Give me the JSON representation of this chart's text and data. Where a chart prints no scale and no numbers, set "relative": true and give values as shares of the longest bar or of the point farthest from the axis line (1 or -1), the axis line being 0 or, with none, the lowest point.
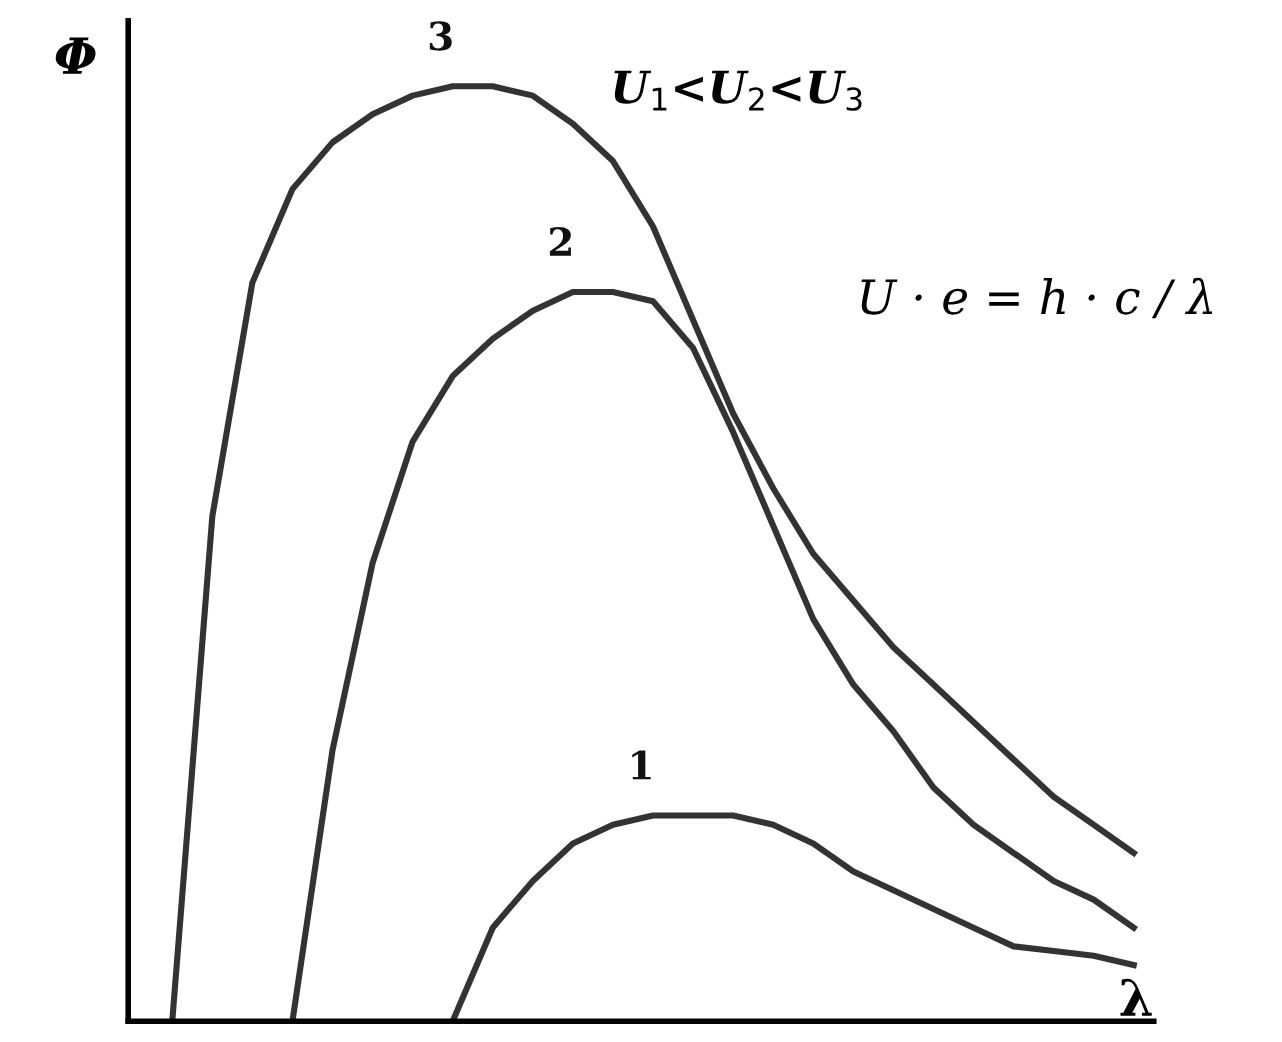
{
  "chart_data": {
    "type": "line",
    "relative": true,
    "xlabel": "λ",
    "ylabel": "Φ",
    "marker": "none",
    "line_style": "solid",
    "categories": [
      null,
      null,
      null,
      null,
      null,
      null,
      null,
      null,
      null,
      null,
      null,
      null,
      null,
      null,
      null,
      null,
      null,
      null,
      null,
      null,
      null,
      null,
      null,
      null,
      null
    ],
    "series": [
      {
        "name": "1",
        "color": "#333333",
        "values": [
          null,
          null,
          null,
          null,
          null,
          null,
          null,
          0,
          0.1,
          0.15,
          0.19,
          0.21,
          0.22,
          0.22,
          0.22,
          0.21,
          0.19,
          0.16,
          0.14,
          0.12,
          0.1,
          0.08,
          0.075,
          0.07,
          0.06
        ]
      },
      {
        "name": "2",
        "color": "#333333",
        "values": [
          null,
          null,
          null,
          0,
          0.29,
          0.49,
          0.62,
          0.69,
          0.73,
          0.76,
          0.78,
          0.78,
          0.77,
          0.72,
          0.63,
          0.53,
          0.43,
          0.36,
          0.31,
          0.25,
          0.21,
          0.18,
          0.15,
          0.13,
          0.1
        ]
      },
      {
        "name": "3",
        "color": "#333333",
        "values": [
          0,
          0.54,
          0.79,
          0.89,
          0.94,
          0.97,
          0.99,
          1.0,
          1.0,
          0.99,
          0.96,
          0.92,
          0.85,
          0.75,
          0.65,
          0.57,
          0.5,
          0.45,
          0.4,
          0.36,
          0.32,
          0.28,
          0.24,
          0.21,
          0.18
        ]
      }
    ],
    "annotations": [
      "U$_{1}$<U$_{2}$<U$_{3}$",
      "U · e = h · c / λ"
    ]
  }
}
